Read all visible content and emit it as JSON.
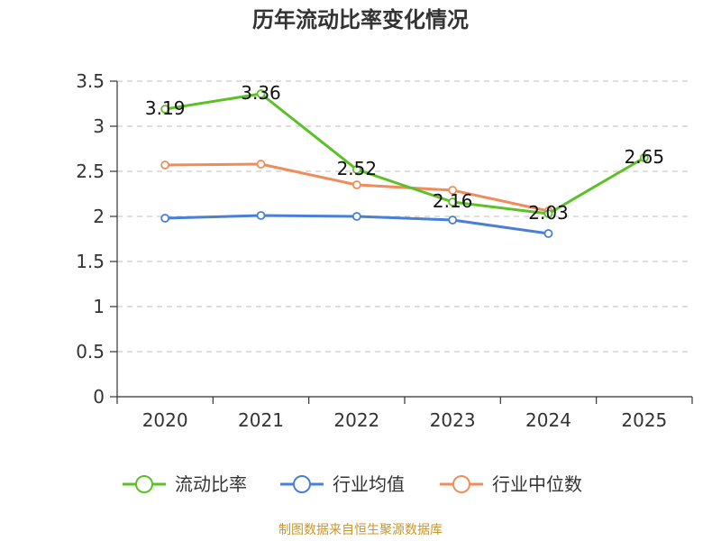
{
  "chart_data": {
    "type": "line",
    "title": "历年流动比率变化情况",
    "categories": [
      "2020",
      "2021",
      "2022",
      "2023",
      "2024",
      "2025"
    ],
    "ylim": [
      0,
      3.5
    ],
    "yticks": [
      0,
      0.5,
      1,
      1.5,
      2,
      2.5,
      3,
      3.5
    ],
    "ytick_labels": [
      "0",
      "0.5",
      "1",
      "1.5",
      "2",
      "2.5",
      "3",
      "3.5"
    ],
    "grid": true,
    "legend_position": "bottom",
    "series": [
      {
        "name": "流动比率",
        "color": "#5cc127",
        "values": [
          3.19,
          3.36,
          2.52,
          2.16,
          2.03,
          2.65
        ],
        "data_labels": [
          "3.19",
          "3.36",
          "2.52",
          "2.16",
          "2.03",
          "2.65"
        ]
      },
      {
        "name": "行业均值",
        "color": "#4a7fd6",
        "values": [
          1.98,
          2.01,
          2.0,
          1.96,
          1.81,
          null
        ]
      },
      {
        "name": "行业中位数",
        "color": "#f08c5a",
        "values": [
          2.57,
          2.58,
          2.35,
          2.29,
          2.06,
          null
        ]
      }
    ]
  },
  "source_note": "制图数据来自恒生聚源数据库"
}
